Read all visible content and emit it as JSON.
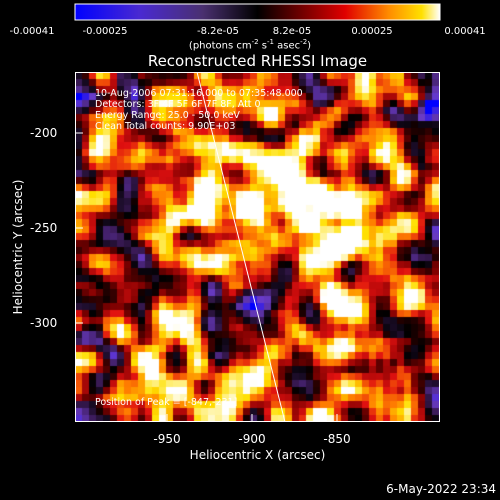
{
  "colorbar": {
    "ticks": [
      "-0.00041",
      "-0.00025",
      "-8.2e-05",
      "8.2e-05",
      "0.00025",
      "0.00041"
    ],
    "units_text": "(photons cm",
    "units_exp1": "-2",
    "units_mid": " s",
    "units_exp2": "-1",
    "units_mid2": " asec",
    "units_exp3": "-2",
    "units_close": ")"
  },
  "title": "Reconstructed RHESSI Image",
  "info": {
    "line1": "10-Aug-2006 07:31:16.000 to 07:35:48.000",
    "line2": "Detectors: 3F 4F 5F 6F 7F 8F, Att 0",
    "line3": "Energy Range: 25.0 - 50.0 keV",
    "line4": "Clean    Total counts: 9.90E+03"
  },
  "peak": "Position of Peak = [-847,-231]",
  "chart_data": {
    "type": "heatmap",
    "title": "Reconstructed RHESSI Image",
    "xlabel": "Heliocentric X (arcsec)",
    "ylabel": "Heliocentric Y (arcsec)",
    "x_ticks": [
      "-950",
      "-900",
      "-850"
    ],
    "y_ticks": [
      "-200",
      "-250",
      "-300"
    ],
    "xlim": [
      -995,
      -815
    ],
    "ylim": [
      -345,
      -170
    ],
    "colorbar_range": [
      -0.00041,
      0.00041
    ],
    "colormap": [
      "#0000ff",
      "#6a3cc8",
      "#3a1a55",
      "#000000",
      "#7a0000",
      "#e01010",
      "#ff8000",
      "#ffe000",
      "#ffffff"
    ],
    "peak_position": [
      -847,
      -231
    ]
  },
  "footer": {
    "date": "6-May-2022 23:34"
  }
}
